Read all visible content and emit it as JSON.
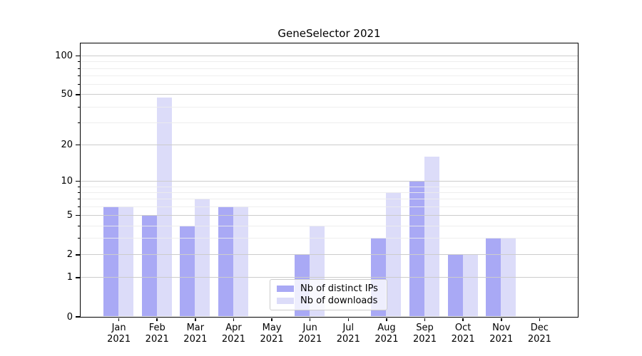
{
  "chart_data": {
    "type": "bar",
    "title": "GeneSelector 2021",
    "categories": [
      {
        "month": "Jan",
        "year": "2021"
      },
      {
        "month": "Feb",
        "year": "2021"
      },
      {
        "month": "Mar",
        "year": "2021"
      },
      {
        "month": "Apr",
        "year": "2021"
      },
      {
        "month": "May",
        "year": "2021"
      },
      {
        "month": "Jun",
        "year": "2021"
      },
      {
        "month": "Jul",
        "year": "2021"
      },
      {
        "month": "Aug",
        "year": "2021"
      },
      {
        "month": "Sep",
        "year": "2021"
      },
      {
        "month": "Oct",
        "year": "2021"
      },
      {
        "month": "Nov",
        "year": "2021"
      },
      {
        "month": "Dec",
        "year": "2021"
      }
    ],
    "series": [
      {
        "name": "Nb of distinct IPs",
        "color": "#a9a9f5",
        "values": [
          6,
          5,
          4,
          6,
          0,
          2,
          0,
          3,
          10,
          2,
          3,
          0
        ]
      },
      {
        "name": "Nb of downloads",
        "color": "#dcdcf9",
        "values": [
          6,
          47,
          7,
          6,
          0,
          4,
          0,
          8,
          16,
          2,
          3,
          0
        ]
      }
    ],
    "xlabel": "",
    "ylabel": "",
    "yscale": "log(1+x)",
    "ylim": [
      0,
      125
    ],
    "yticks": [
      0,
      1,
      2,
      5,
      10,
      20,
      50,
      100
    ],
    "minor_gridlines": [
      3,
      4,
      6,
      7,
      8,
      9,
      30,
      40,
      60,
      70,
      80,
      90
    ],
    "grid": true,
    "legend_position": "inside lower-center"
  },
  "colors": {
    "grid_major": "#cccccc",
    "grid_minor": "#ececec",
    "axis": "#000000",
    "legend_border": "#cccccc",
    "background": "#ffffff",
    "text": "#000000"
  }
}
